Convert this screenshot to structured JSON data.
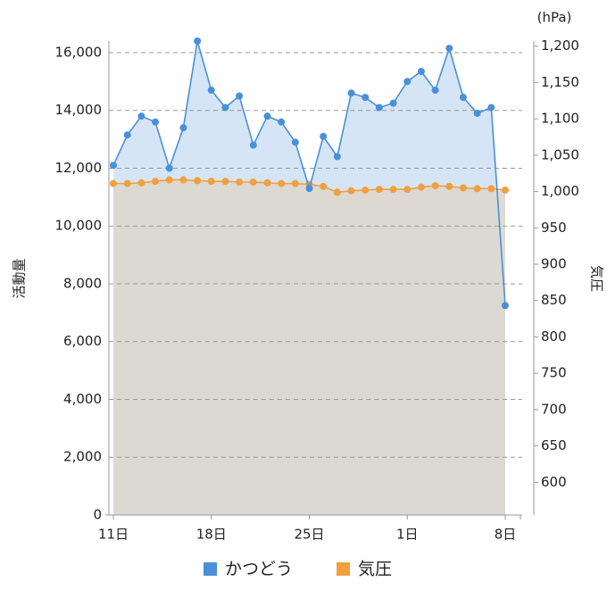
{
  "chart_data": {
    "type": "area",
    "y_label": "活動量",
    "y2_label": "気圧",
    "y2_unit": "(hPa)",
    "categories": [
      "11日",
      null,
      null,
      null,
      null,
      null,
      null,
      "18日",
      null,
      null,
      null,
      null,
      null,
      null,
      "25日",
      null,
      null,
      null,
      null,
      null,
      null,
      "1日",
      null,
      null,
      null,
      null,
      null,
      null,
      "8日"
    ],
    "series": [
      {
        "name": "かつどう",
        "color": "#4a90d9",
        "fill": "#d5e5f5",
        "axis": "y",
        "values": [
          12100,
          13150,
          13800,
          13600,
          12000,
          13400,
          16400,
          14700,
          14100,
          14500,
          12800,
          13800,
          13600,
          12900,
          11300,
          13100,
          12400,
          14600,
          14450,
          14100,
          14250,
          15000,
          15350,
          14700,
          16150,
          14450,
          13900,
          14100,
          7250
        ]
      },
      {
        "name": "気圧",
        "color": "#f0a040",
        "fill": "#dcd8cf",
        "axis": "y2",
        "values": [
          1011,
          1011,
          1012,
          1014,
          1016,
          1016,
          1015,
          1014,
          1014,
          1013,
          1013,
          1012,
          1011,
          1011,
          1010,
          1007,
          999,
          1001,
          1002,
          1003,
          1003,
          1003,
          1006,
          1008,
          1007,
          1005,
          1004,
          1004,
          1002
        ]
      }
    ],
    "ylim": [
      0,
      16400
    ],
    "yticks": [
      0,
      {
        "value": 2000,
        "label": "2,000"
      },
      {
        "value": 4000,
        "label": "4,000"
      },
      {
        "value": 6000,
        "label": "6,000"
      },
      {
        "value": 8000,
        "label": "8,000"
      },
      {
        "value": 10000,
        "label": "10,000"
      },
      {
        "value": 12000,
        "label": "12,000"
      },
      {
        "value": 14000,
        "label": "14,000"
      },
      {
        "value": 16000,
        "label": "16,000"
      }
    ],
    "y2lim": [
      555,
      1207
    ],
    "y2ticks": [
      600,
      650,
      700,
      750,
      800,
      850,
      900,
      950,
      {
        "value": 1000,
        "label": "1,000"
      },
      {
        "value": 1050,
        "label": "1,050"
      },
      {
        "value": 1100,
        "label": "1,100"
      },
      {
        "value": 1150,
        "label": "1,150"
      },
      {
        "value": 1200,
        "label": "1,200"
      }
    ],
    "grid": true
  }
}
